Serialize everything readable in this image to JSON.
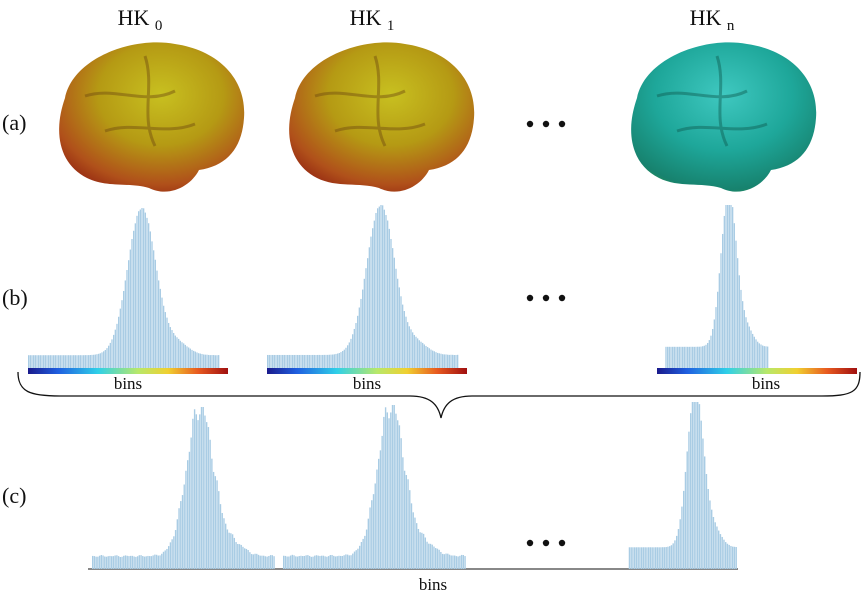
{
  "columns": [
    {
      "title": "HK",
      "subscript": "0"
    },
    {
      "title": "HK",
      "subscript": "1"
    },
    {
      "title": "HK",
      "subscript": "n"
    }
  ],
  "rows": [
    "(a)",
    "(b)",
    "(c)"
  ],
  "bins_labels": [
    "bins",
    "bins",
    "bins",
    "bins"
  ]
}
